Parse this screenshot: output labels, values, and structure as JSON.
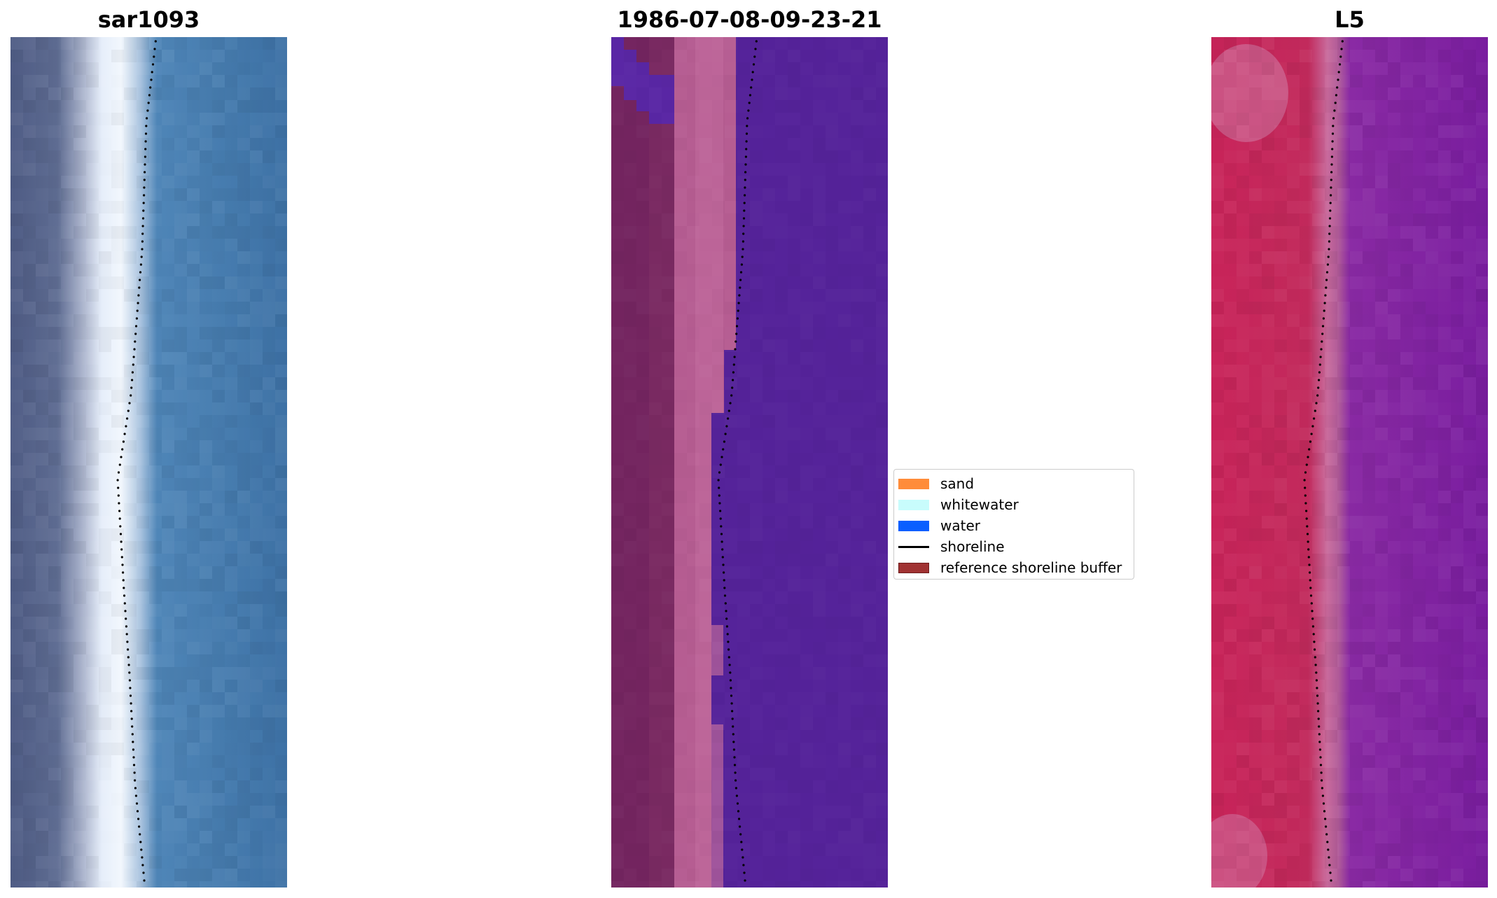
{
  "panels": [
    {
      "title": "sar1093",
      "type": "rgb-image"
    },
    {
      "title": "1986-07-08-09-23-21",
      "type": "classified-image"
    },
    {
      "title": "L5",
      "type": "mndwi-image"
    }
  ],
  "legend": {
    "items": [
      {
        "label": "sand",
        "kind": "patch",
        "color": "#ff8c3a"
      },
      {
        "label": "whitewater",
        "kind": "patch",
        "color": "#c8fcfc"
      },
      {
        "label": "water",
        "kind": "patch",
        "color": "#0a5fff"
      },
      {
        "label": "shoreline",
        "kind": "line",
        "color": "#000000"
      },
      {
        "label": "reference shoreline buffer",
        "kind": "patch",
        "color": "#a03232",
        "edge": "#6e1c1c"
      }
    ]
  },
  "colors": {
    "rgb_land": "#4c5a80",
    "rgb_surf": "#e8f0fb",
    "rgb_water": "#3f78ab",
    "class_land": "#7a2a62",
    "class_beach": "#b65d92",
    "class_water": "#55239a",
    "index_land": "#c41a4a",
    "index_beach": "#c96a9a",
    "index_water": "#7a1ea0",
    "shoreline": "#000000"
  }
}
